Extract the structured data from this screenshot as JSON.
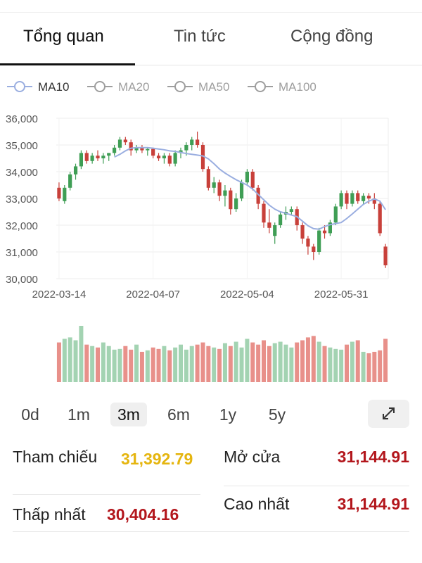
{
  "tabs": [
    {
      "label": "Tổng quan",
      "active": true
    },
    {
      "label": "Tin tức",
      "active": false
    },
    {
      "label": "Cộng đồng",
      "active": false
    }
  ],
  "chart_data": {
    "type": "candlestick",
    "categories": [
      "2022-03-14",
      null,
      null,
      null,
      null,
      null,
      null,
      null,
      null,
      null,
      null,
      null,
      null,
      null,
      null,
      null,
      null,
      "2022-04-07",
      null,
      null,
      null,
      null,
      null,
      null,
      null,
      null,
      null,
      null,
      null,
      null,
      null,
      null,
      null,
      null,
      "2022-05-04",
      null,
      null,
      null,
      null,
      null,
      null,
      null,
      null,
      null,
      null,
      null,
      null,
      null,
      null,
      null,
      null,
      "2022-05-31",
      null,
      null,
      null,
      null,
      null,
      null,
      null,
      null
    ],
    "open": [
      33400,
      32900,
      33400,
      33900,
      34200,
      34700,
      34400,
      34600,
      34500,
      34600,
      34700,
      34900,
      35200,
      35100,
      34800,
      34900,
      34800,
      34850,
      34600,
      34500,
      34600,
      34300,
      34700,
      34800,
      35000,
      35200,
      35000,
      34100,
      33400,
      33600,
      33100,
      33300,
      32600,
      33000,
      33600,
      34000,
      33400,
      32800,
      32100,
      31600,
      32000,
      32400,
      32500,
      32600,
      32000,
      31500,
      31200,
      31000,
      31800,
      31700,
      32100,
      32700,
      33200,
      32800,
      33200,
      32900,
      33100,
      33000,
      32800,
      31200
    ],
    "high": [
      33600,
      33500,
      34000,
      34300,
      34800,
      34800,
      34700,
      34800,
      34700,
      34700,
      35000,
      35300,
      35300,
      35200,
      35000,
      35000,
      34900,
      34900,
      34700,
      34700,
      34700,
      34800,
      34900,
      35100,
      35300,
      35500,
      35100,
      34200,
      33800,
      33700,
      33500,
      33400,
      33200,
      33700,
      34100,
      34100,
      33500,
      32900,
      32600,
      32100,
      32500,
      32700,
      32700,
      32700,
      32100,
      31600,
      31300,
      31900,
      32000,
      32200,
      32800,
      33300,
      33300,
      33300,
      33300,
      33200,
      33200,
      33200,
      32900,
      31300
    ],
    "low": [
      32900,
      32800,
      33300,
      33700,
      34100,
      34300,
      34300,
      34400,
      34300,
      34400,
      34600,
      34800,
      35000,
      34600,
      34700,
      34700,
      34600,
      34500,
      34400,
      34300,
      34200,
      34200,
      34500,
      34600,
      34800,
      34900,
      34000,
      33300,
      33200,
      32900,
      32700,
      32400,
      32500,
      32900,
      33500,
      33300,
      32600,
      31900,
      31700,
      31300,
      31900,
      32200,
      32400,
      31800,
      31300,
      30900,
      30700,
      30900,
      31500,
      31600,
      32000,
      32600,
      32600,
      32700,
      32800,
      32800,
      32800,
      32600,
      31600,
      30400
    ],
    "close": [
      33000,
      33400,
      33900,
      34200,
      34700,
      34400,
      34600,
      34500,
      34600,
      34700,
      34900,
      35200,
      35100,
      34800,
      34900,
      34800,
      34850,
      34600,
      34500,
      34600,
      34300,
      34700,
      34800,
      35000,
      35200,
      35000,
      34100,
      33400,
      33600,
      33100,
      33300,
      32600,
      33000,
      33600,
      34000,
      33400,
      32800,
      32100,
      31900,
      32000,
      32400,
      32500,
      32600,
      32000,
      31500,
      31200,
      31000,
      31800,
      31700,
      32100,
      32700,
      33200,
      32800,
      33200,
      32900,
      33100,
      33000,
      32800,
      31700,
      30500
    ],
    "volume": [
      55,
      60,
      62,
      58,
      78,
      52,
      50,
      48,
      55,
      50,
      45,
      46,
      50,
      45,
      52,
      42,
      44,
      48,
      46,
      50,
      44,
      48,
      52,
      45,
      50,
      52,
      55,
      50,
      48,
      46,
      54,
      50,
      56,
      48,
      60,
      55,
      52,
      58,
      50,
      54,
      56,
      52,
      48,
      55,
      58,
      62,
      64,
      56,
      50,
      48,
      46,
      45,
      52,
      56,
      58,
      42,
      40,
      42,
      44,
      60
    ],
    "up_color": "#3f9e55",
    "down_color": "#c8403a",
    "volume_up_color": "#a3d3b2",
    "volume_down_color": "#e8908a",
    "series": [
      {
        "name": "MA10",
        "color": "#9aaee0",
        "values": [
          null,
          null,
          null,
          null,
          null,
          null,
          null,
          null,
          null,
          null,
          34550,
          34650,
          34780,
          34880,
          34900,
          34900,
          34900,
          34880,
          34850,
          34820,
          34780,
          34760,
          34720,
          34680,
          34650,
          34620,
          34590,
          34480,
          34300,
          34100,
          33950,
          33820,
          33700,
          33600,
          33500,
          33350,
          33150,
          32950,
          32750,
          32600,
          32500,
          32450,
          32380,
          32320,
          32150,
          31980,
          31870,
          31850,
          31950,
          32020,
          32060,
          32100,
          32250,
          32420,
          32600,
          32780,
          32900,
          32980,
          32900,
          32580
        ]
      }
    ],
    "inactive_indicators": [
      {
        "name": "MA20",
        "color": "#9e9e9e"
      },
      {
        "name": "MA50",
        "color": "#9e9e9e"
      },
      {
        "name": "MA100",
        "color": "#9e9e9e"
      }
    ],
    "ylim": [
      30000,
      36000
    ],
    "yticks": [
      {
        "value": 30000,
        "label": "30,000"
      },
      {
        "value": 31000,
        "label": "31,000"
      },
      {
        "value": 32000,
        "label": "32,000"
      },
      {
        "value": 33000,
        "label": "33,000"
      },
      {
        "value": 34000,
        "label": "34,000"
      },
      {
        "value": 35000,
        "label": "35,000"
      },
      {
        "value": 36000,
        "label": "36,000"
      }
    ],
    "grid": true
  },
  "ranges": [
    {
      "label": "0d",
      "active": false
    },
    {
      "label": "1m",
      "active": false
    },
    {
      "label": "3m",
      "active": true
    },
    {
      "label": "6m",
      "active": false
    },
    {
      "label": "1y",
      "active": false
    },
    {
      "label": "5y",
      "active": false
    }
  ],
  "stats": {
    "reference": {
      "label": "Tham chiếu",
      "value": "31,392.79"
    },
    "open": {
      "label": "Mở cửa",
      "value": "31,144.91"
    },
    "low": {
      "label": "Thấp nhất",
      "value": "30,404.16"
    },
    "high": {
      "label": "Cao nhất",
      "value": "31,144.91"
    }
  }
}
